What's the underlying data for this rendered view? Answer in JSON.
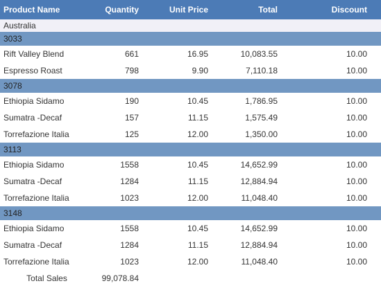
{
  "header": [
    "Product Name",
    "Quantity",
    "Unit Price",
    "Total",
    "Discount"
  ],
  "region": "Australia",
  "groups": [
    {
      "id": "3033",
      "rows": [
        [
          "Rift Valley Blend",
          "661",
          "16.95",
          "10,083.55",
          "10.00"
        ],
        [
          "Espresso Roast",
          "798",
          "9.90",
          "7,110.18",
          "10.00"
        ]
      ]
    },
    {
      "id": "3078",
      "rows": [
        [
          "Ethiopia Sidamo",
          "190",
          "10.45",
          "1,786.95",
          "10.00"
        ],
        [
          "Sumatra -Decaf",
          "157",
          "11.15",
          "1,575.49",
          "10.00"
        ],
        [
          "Torrefazione Italia",
          "125",
          "12.00",
          "1,350.00",
          "10.00"
        ]
      ]
    },
    {
      "id": "3113",
      "rows": [
        [
          "Ethiopia Sidamo",
          "1558",
          "10.45",
          "14,652.99",
          "10.00"
        ],
        [
          "Sumatra -Decaf",
          "1284",
          "11.15",
          "12,884.94",
          "10.00"
        ],
        [
          "Torrefazione Italia",
          "1023",
          "12.00",
          "11,048.40",
          "10.00"
        ]
      ]
    },
    {
      "id": "3148",
      "rows": [
        [
          "Ethiopia Sidamo",
          "1558",
          "10.45",
          "14,652.99",
          "10.00"
        ],
        [
          "Sumatra -Decaf",
          "1284",
          "11.15",
          "12,884.94",
          "10.00"
        ],
        [
          "Torrefazione Italia",
          "1023",
          "12.00",
          "11,048.40",
          "10.00"
        ]
      ]
    }
  ],
  "footer": {
    "label": "Total Sales",
    "value": "99,078.84"
  }
}
